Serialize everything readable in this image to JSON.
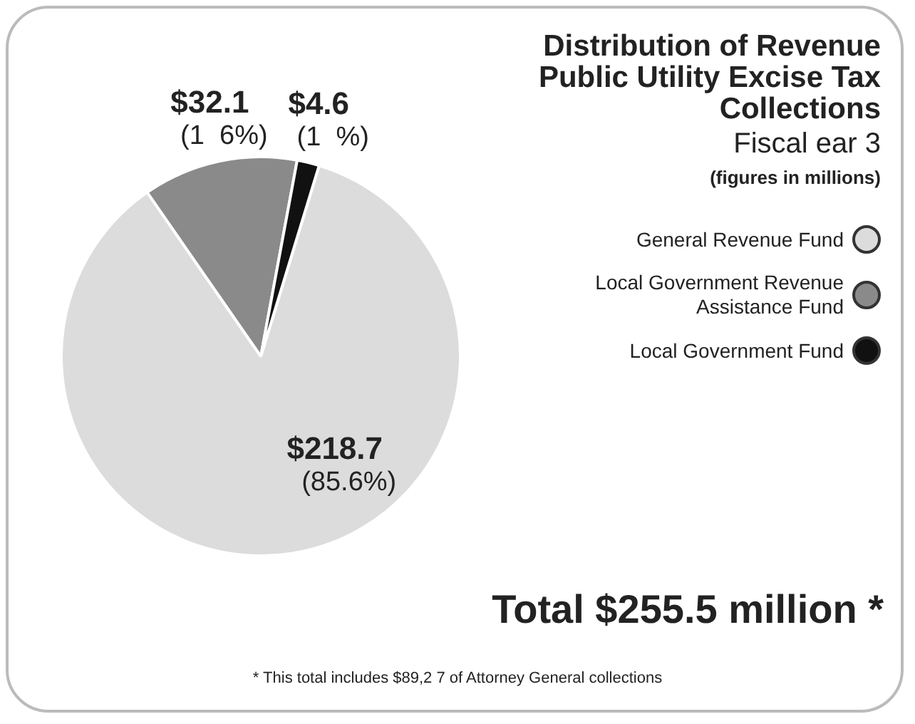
{
  "chart_data": {
    "type": "pie",
    "title": "Distribution of Revenue Public Utility Excise Tax Collections",
    "subtitle": "Fiscal ear   3",
    "categories": [
      "General Revenue Fund",
      "Local Government Revenue Assistance Fund",
      "Local Government Fund"
    ],
    "values": [
      218.7,
      32.1,
      4.6
    ],
    "colors": [
      "#dcdcdc",
      "#8a8a8a",
      "#111111"
    ],
    "value_labels": [
      "$218.7 (85.6%)",
      "$32.1 (1  6%)",
      "$4.6 (1  %)"
    ],
    "legend": "right",
    "annotations": [
      "(figures in millions)",
      "Total $255.5 million *",
      "* This total includes $89,2  7 of Attorney General collections"
    ]
  }
}
